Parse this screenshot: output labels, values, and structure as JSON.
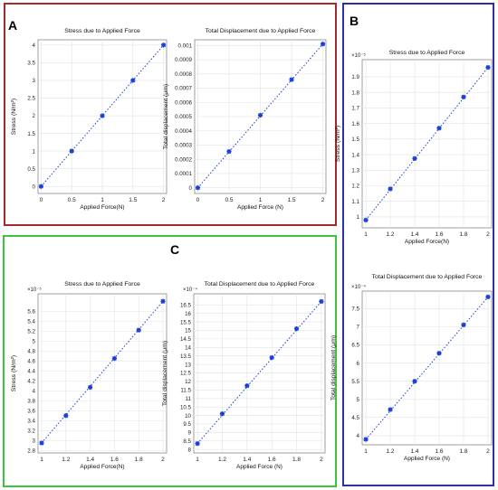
{
  "panels": {
    "a": "A",
    "b": "B",
    "c": "C"
  },
  "colors": {
    "panel_a": "#a52a2a",
    "panel_b": "#2b2fa8",
    "panel_c": "#3cc43c",
    "marker": "#1a3fd6",
    "fit": "#1a3fd6"
  },
  "chart_data": [
    {
      "id": "a1",
      "type": "scatter",
      "title": "Stress due to Applied Force",
      "xlabel": "Applied Force(N)",
      "ylabel": "Stress (N/m²)",
      "x": [
        0,
        0.5,
        1,
        1.5,
        2
      ],
      "y": [
        0,
        1,
        2,
        3,
        4
      ],
      "xlim": [
        -0.05,
        2.05
      ],
      "ylim": [
        -0.2,
        4.15
      ],
      "xticks": [
        0,
        0.5,
        1,
        1.5,
        2
      ],
      "yticks": [
        0,
        0.5,
        1,
        1.5,
        2,
        2.5,
        3,
        3.5,
        4
      ],
      "xticklabels": [
        "0",
        "0.5",
        "1",
        "1.5",
        "2"
      ],
      "yticklabels": [
        "0",
        "0.5",
        "1",
        "1.5",
        "2",
        "2.5",
        "3",
        "3.5",
        "4"
      ],
      "multiplier": "",
      "grid": true,
      "fit_line": "dotted"
    },
    {
      "id": "a2",
      "type": "scatter",
      "title": "Total Displacement due to Applied Force",
      "xlabel": "Applied Force (N)",
      "ylabel": "Total displacement (μm)",
      "x": [
        0,
        0.5,
        1,
        1.5,
        2
      ],
      "y": [
        0,
        0.000255,
        0.00051,
        0.00076,
        0.00101
      ],
      "xlim": [
        -0.05,
        2.05
      ],
      "ylim": [
        -4e-05,
        0.00104
      ],
      "xticks": [
        0,
        0.5,
        1,
        1.5,
        2
      ],
      "yticks": [
        0,
        0.0001,
        0.0002,
        0.0003,
        0.0004,
        0.0005,
        0.0006,
        0.0007,
        0.0008,
        0.0009,
        0.001
      ],
      "xticklabels": [
        "0",
        "0.5",
        "1",
        "1.5",
        "2"
      ],
      "yticklabels": [
        "0",
        "0.0001",
        "0.0002",
        "0.0003",
        "0.0004",
        "0.0005",
        "0.0006",
        "0.0007",
        "0.0008",
        "0.0009",
        "0.001"
      ],
      "multiplier": "",
      "grid": true,
      "fit_line": "dotted"
    },
    {
      "id": "b1",
      "type": "scatter",
      "title": "Stress due to Applied Force",
      "xlabel": "Applied Force(N)",
      "ylabel": "Stress (N/m²)",
      "x": [
        1,
        1.2,
        1.4,
        1.6,
        1.8,
        2
      ],
      "y": [
        0.98,
        1.18,
        1.375,
        1.57,
        1.77,
        1.96
      ],
      "xlim": [
        0.97,
        2.03
      ],
      "ylim": [
        0.93,
        2.01
      ],
      "xticks": [
        1,
        1.2,
        1.4,
        1.6,
        1.8,
        2
      ],
      "yticks": [
        1,
        1.1,
        1.2,
        1.3,
        1.4,
        1.5,
        1.6,
        1.7,
        1.8,
        1.9
      ],
      "xticklabels": [
        "1",
        "1.2",
        "1.4",
        "1.6",
        "1.8",
        "2"
      ],
      "yticklabels": [
        "1",
        "1.1",
        "1.2",
        "1.3",
        "1.4",
        "1.5",
        "1.6",
        "1.7",
        "1.8",
        "1.9"
      ],
      "multiplier": "×10⁻⁵",
      "grid": true,
      "fit_line": "dotted"
    },
    {
      "id": "b2",
      "type": "scatter",
      "title": "Total Displacement due to Applied Force",
      "xlabel": "Applied Force (N)",
      "ylabel": "Total displacement (μm)",
      "x": [
        1,
        1.2,
        1.4,
        1.6,
        1.8,
        2
      ],
      "y": [
        3.9,
        4.72,
        5.5,
        6.27,
        7.05,
        7.82
      ],
      "xlim": [
        0.97,
        2.03
      ],
      "ylim": [
        3.75,
        7.98
      ],
      "xticks": [
        1,
        1.2,
        1.4,
        1.6,
        1.8,
        2
      ],
      "yticks": [
        4,
        4.5,
        5,
        5.5,
        6,
        6.5,
        7,
        7.5
      ],
      "xticklabels": [
        "1",
        "1.2",
        "1.4",
        "1.6",
        "1.8",
        "2"
      ],
      "yticklabels": [
        "4",
        "4.5",
        "5",
        "5.5",
        "6",
        "6.5",
        "7",
        "7.5"
      ],
      "multiplier": "×10⁻⁴",
      "grid": true,
      "fit_line": "dotted"
    },
    {
      "id": "c1",
      "type": "scatter",
      "title": "Stress due to Applied Force",
      "xlabel": "Applied Force(N)",
      "ylabel": "Stress (N/m²)",
      "x": [
        1,
        1.2,
        1.4,
        1.6,
        1.8,
        2
      ],
      "y": [
        2.95,
        3.5,
        4.07,
        4.65,
        5.22,
        5.8
      ],
      "xlim": [
        0.97,
        2.03
      ],
      "ylim": [
        2.75,
        5.95
      ],
      "xticks": [
        1,
        1.2,
        1.4,
        1.6,
        1.8,
        2
      ],
      "yticks": [
        2.8,
        3,
        3.2,
        3.4,
        3.6,
        3.8,
        4,
        4.2,
        4.4,
        4.6,
        4.8,
        5,
        5.2,
        5.4,
        5.6
      ],
      "xticklabels": [
        "1",
        "1.2",
        "1.4",
        "1.6",
        "1.8",
        "2"
      ],
      "yticklabels": [
        "2.8",
        "3",
        "3.2",
        "3.4",
        "3.6",
        "3.8",
        "4",
        "4.2",
        "4.4",
        "4.6",
        "4.8",
        "5",
        "5.2",
        "5.4",
        "5.6"
      ],
      "multiplier": "×10⁻⁵",
      "grid": true,
      "fit_line": "dotted"
    },
    {
      "id": "c2",
      "type": "scatter",
      "title": "Total Displacement due to Applied Force",
      "xlabel": "Applied Force (N)",
      "ylabel": "Total displacement (μm)",
      "x": [
        1,
        1.2,
        1.4,
        1.6,
        1.8,
        2
      ],
      "y": [
        8.35,
        10.1,
        11.75,
        13.4,
        15.1,
        16.7
      ],
      "xlim": [
        0.97,
        2.03
      ],
      "ylim": [
        7.8,
        17.15
      ],
      "xticks": [
        1,
        1.2,
        1.4,
        1.6,
        1.8,
        2
      ],
      "yticks": [
        8,
        8.5,
        9,
        9.5,
        10,
        10.5,
        11,
        11.5,
        12,
        12.5,
        13,
        13.5,
        14,
        14.5,
        15,
        15.5,
        16,
        16.5
      ],
      "xticklabels": [
        "1",
        "1.2",
        "1.4",
        "1.6",
        "1.8",
        "2"
      ],
      "yticklabels": [
        "8",
        "8.5",
        "9",
        "9.5",
        "10",
        "10.5",
        "11",
        "11.5",
        "12",
        "12.5",
        "13",
        "13.5",
        "14",
        "14.5",
        "15",
        "15.5",
        "16",
        "16.5"
      ],
      "multiplier": "×10⁻⁴",
      "grid": true,
      "fit_line": "dotted"
    }
  ]
}
